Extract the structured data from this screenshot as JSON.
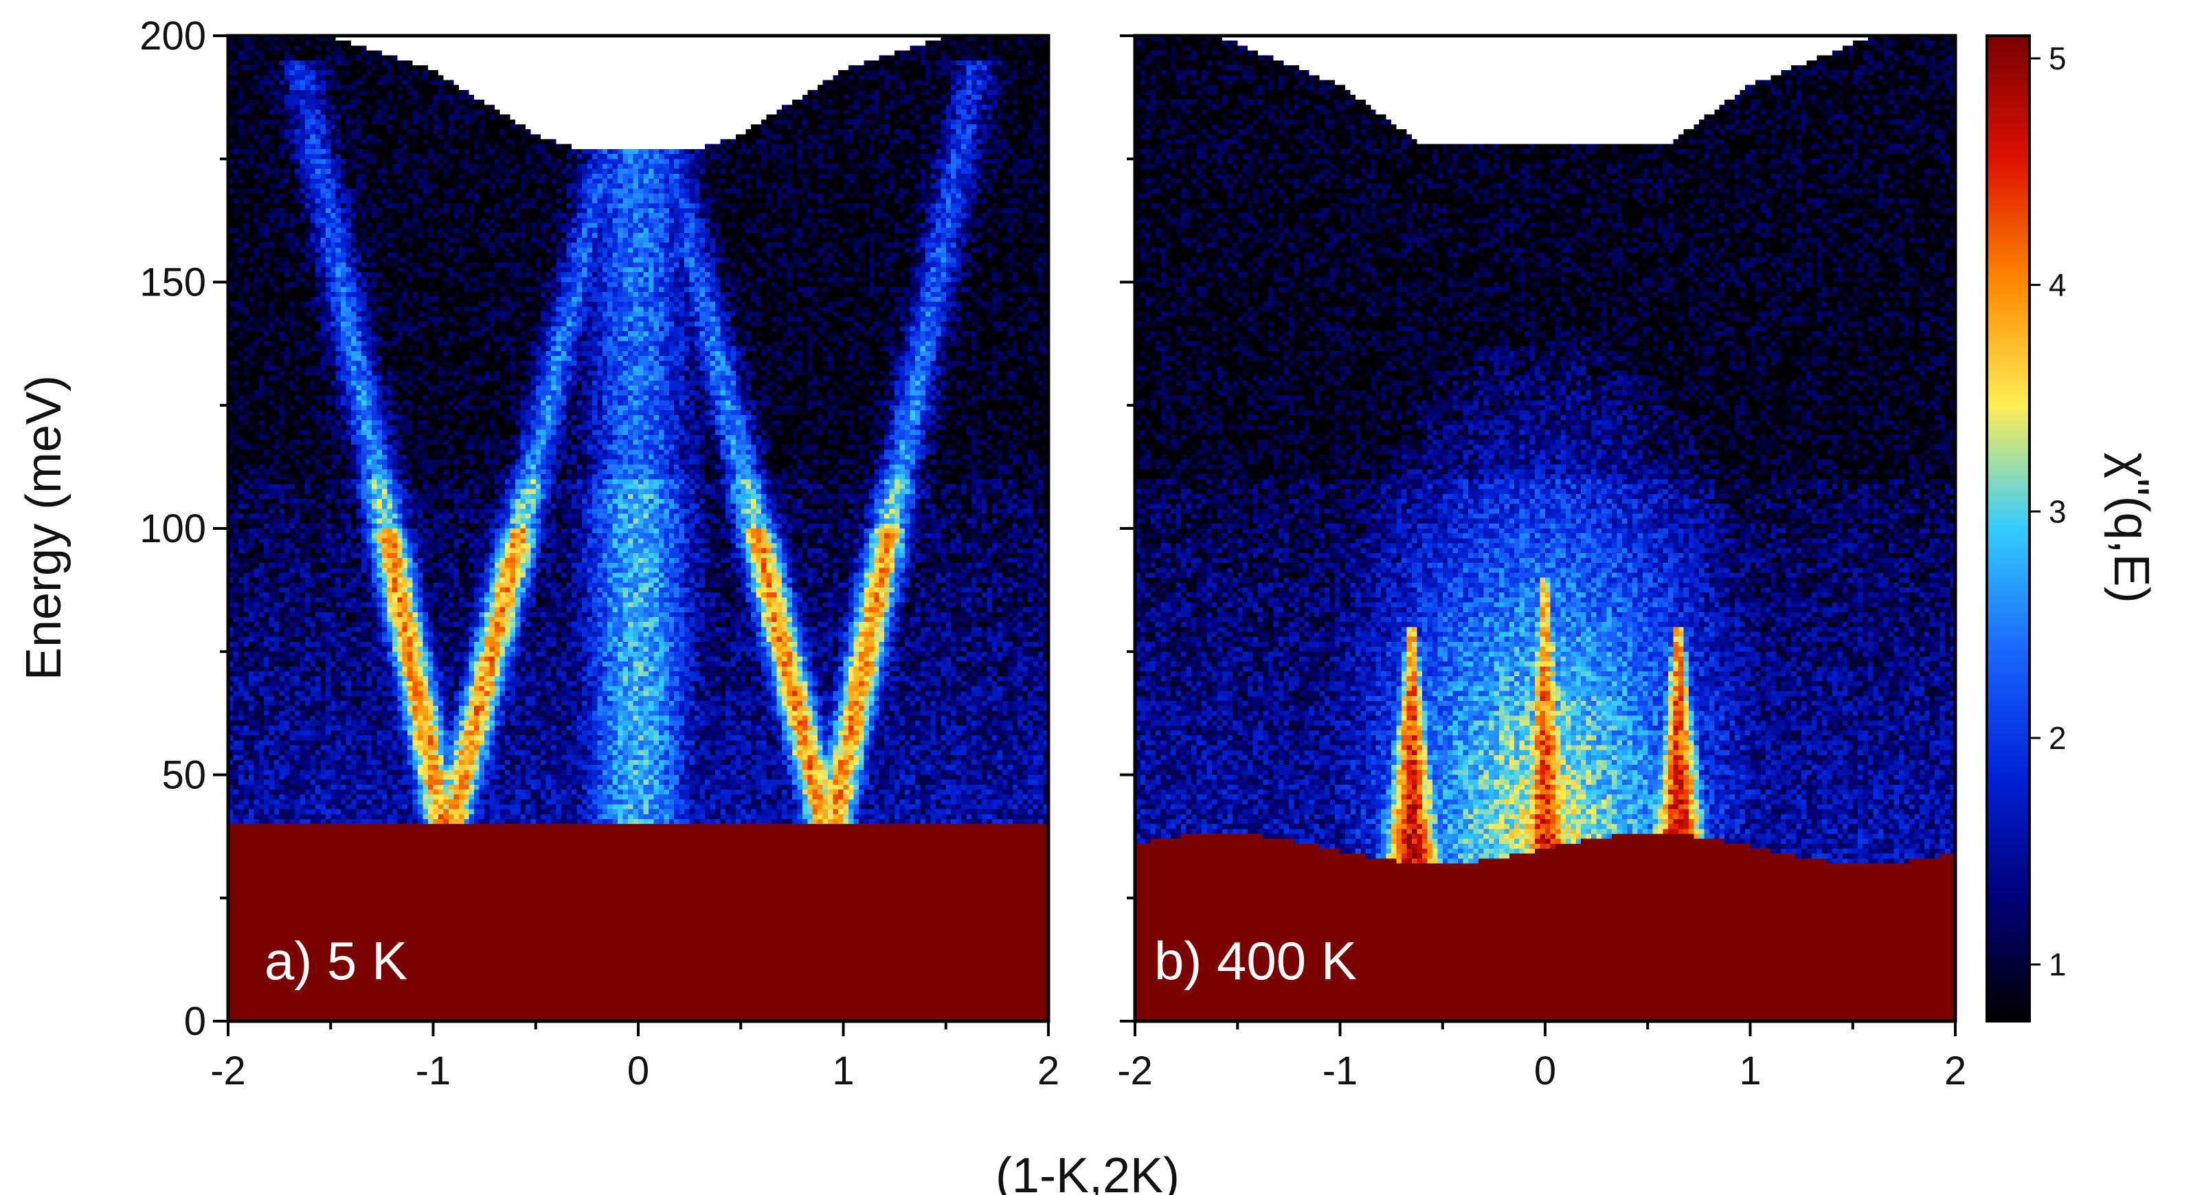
{
  "chart_data": {
    "type": "heatmap",
    "xlabel": "(1-K,2K)",
    "ylabel": "Energy (meV)",
    "colorbar_label": "χ\"(q,E)",
    "xlim": [
      -2,
      2
    ],
    "ylim": [
      0,
      200
    ],
    "x_ticks": [
      "-2",
      "-1",
      "0",
      "1",
      "2"
    ],
    "y_ticks": [
      "0",
      "50",
      "100",
      "150",
      "200"
    ],
    "colorbar_range": [
      0.75,
      5.1
    ],
    "colorbar_ticks": [
      "1",
      "2",
      "3",
      "4",
      "5"
    ],
    "colormap": [
      "#000000",
      "#00007a",
      "#0022d8",
      "#1a66ff",
      "#33ccff",
      "#ffee55",
      "#ff8800",
      "#dd1100",
      "#7a0000"
    ],
    "panels": [
      {
        "label": "a) 5 K",
        "temperature_K": 5,
        "elastic_cutoff_meV": 40,
        "upper_boundary": [
          [
            -2,
            200
          ],
          [
            -1.5,
            200
          ],
          [
            -1,
            193
          ],
          [
            -0.5,
            180
          ],
          [
            -0.3,
            177
          ],
          [
            0,
            177
          ],
          [
            0.3,
            177
          ],
          [
            0.5,
            180
          ],
          [
            1,
            193
          ],
          [
            1.5,
            200
          ],
          [
            2,
            200
          ]
        ],
        "features": [
          {
            "type": "dispersion_branch",
            "q_at_50meV": -1.0,
            "q_at_150meV": -1.45,
            "peak_intensity": 4.5
          },
          {
            "type": "dispersion_branch",
            "q_at_50meV": -0.85,
            "q_at_150meV": -0.3,
            "peak_intensity": 4.5
          },
          {
            "type": "dispersion_branch",
            "q_at_50meV": 0.85,
            "q_at_150meV": 0.3,
            "peak_intensity": 4.5
          },
          {
            "type": "dispersion_branch",
            "q_at_50meV": 1.0,
            "q_at_150meV": 1.45,
            "peak_intensity": 4.5
          },
          {
            "type": "broad_column",
            "q_center": 0.0,
            "intensity": 2.0
          }
        ]
      },
      {
        "label": "b) 400 K",
        "temperature_K": 400,
        "elastic_cutoff_meV": 35,
        "upper_boundary": [
          [
            -2,
            200
          ],
          [
            -1.6,
            200
          ],
          [
            -1,
            190
          ],
          [
            -0.6,
            178
          ],
          [
            0,
            178
          ],
          [
            0.6,
            178
          ],
          [
            1,
            190
          ],
          [
            1.6,
            200
          ],
          [
            2,
            200
          ]
        ],
        "features": [
          {
            "type": "diffuse_dome",
            "q_center": 0.0,
            "top_meV": 140,
            "intensity": 2.0
          },
          {
            "type": "hot_peak",
            "q_center": -0.65,
            "top_meV": 80,
            "intensity": 4.3
          },
          {
            "type": "hot_peak",
            "q_center": 0.0,
            "top_meV": 90,
            "intensity": 4.0
          },
          {
            "type": "hot_peak",
            "q_center": 0.65,
            "top_meV": 80,
            "intensity": 4.3
          }
        ]
      }
    ]
  }
}
